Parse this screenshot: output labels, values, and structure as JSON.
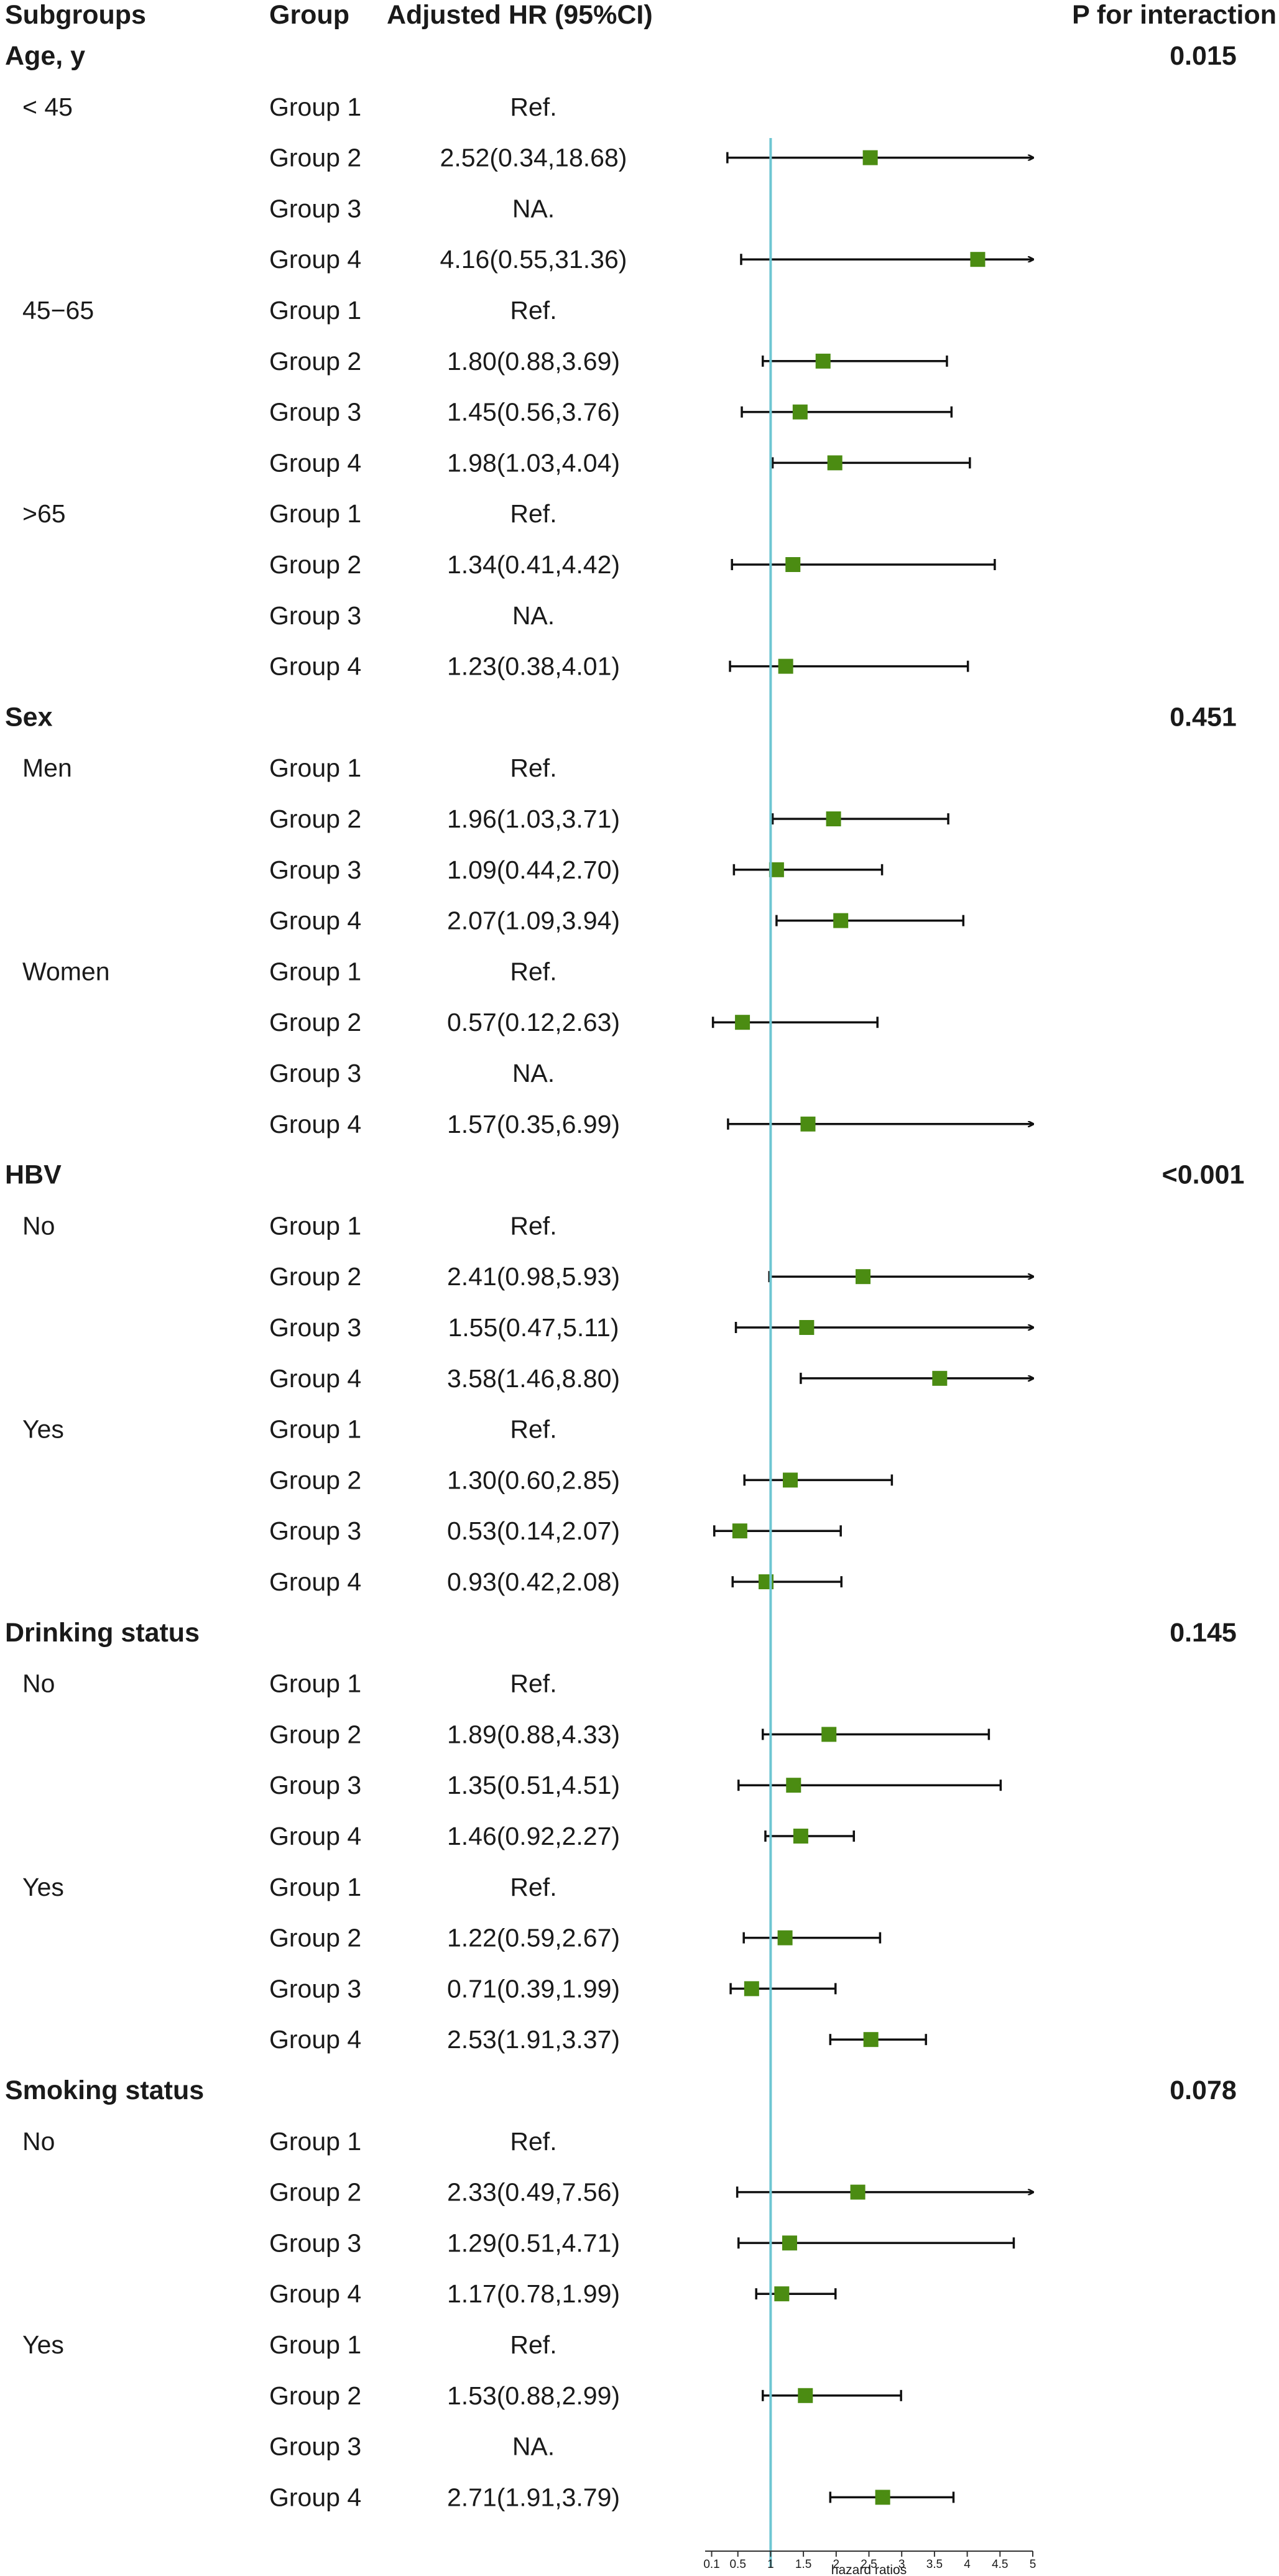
{
  "chart_data": {
    "type": "forest",
    "xlabel": "hazard ratios",
    "xlim": [
      0,
      5
    ],
    "reference_line": 1,
    "reference_color": "#6ec6d2",
    "marker_color": "#4b8c12",
    "tick_values": [
      0.1,
      0.5,
      1,
      1.5,
      2,
      2.5,
      3,
      3.5,
      4,
      4.5,
      5
    ],
    "tick_labels": [
      "0.1",
      "0.5",
      "1",
      "1.5",
      "2",
      "2.5",
      "3",
      "3.5",
      "4",
      "4.5",
      "5"
    ],
    "columns": {
      "subgroups": "Subgroups",
      "group": "Group",
      "hr": "Adjusted HR (95%CI)",
      "p": "P for interaction"
    },
    "rows": [
      {
        "kind": "section",
        "label": "Age, y",
        "p": "0.015"
      },
      {
        "kind": "row",
        "sub": "< 45",
        "group": "Group 1",
        "hr_text": "Ref.",
        "est": null,
        "lo": null,
        "hi": null
      },
      {
        "kind": "row",
        "sub": "",
        "group": "Group 2",
        "hr_text": "2.52(0.34,18.68)",
        "est": 2.52,
        "lo": 0.34,
        "hi": 18.68
      },
      {
        "kind": "row",
        "sub": "",
        "group": "Group 3",
        "hr_text": "NA.",
        "est": null,
        "lo": null,
        "hi": null
      },
      {
        "kind": "row",
        "sub": "",
        "group": "Group 4",
        "hr_text": "4.16(0.55,31.36)",
        "est": 4.16,
        "lo": 0.55,
        "hi": 31.36
      },
      {
        "kind": "row",
        "sub": "45−65",
        "group": "Group 1",
        "hr_text": "Ref.",
        "est": null,
        "lo": null,
        "hi": null
      },
      {
        "kind": "row",
        "sub": "",
        "group": "Group 2",
        "hr_text": "1.80(0.88,3.69)",
        "est": 1.8,
        "lo": 0.88,
        "hi": 3.69
      },
      {
        "kind": "row",
        "sub": "",
        "group": "Group 3",
        "hr_text": "1.45(0.56,3.76)",
        "est": 1.45,
        "lo": 0.56,
        "hi": 3.76
      },
      {
        "kind": "row",
        "sub": "",
        "group": "Group 4",
        "hr_text": "1.98(1.03,4.04)",
        "est": 1.98,
        "lo": 1.03,
        "hi": 4.04
      },
      {
        "kind": "row",
        "sub": ">65",
        "group": "Group 1",
        "hr_text": "Ref.",
        "est": null,
        "lo": null,
        "hi": null
      },
      {
        "kind": "row",
        "sub": "",
        "group": "Group 2",
        "hr_text": "1.34(0.41,4.42)",
        "est": 1.34,
        "lo": 0.41,
        "hi": 4.42
      },
      {
        "kind": "row",
        "sub": "",
        "group": "Group 3",
        "hr_text": "NA.",
        "est": null,
        "lo": null,
        "hi": null
      },
      {
        "kind": "row",
        "sub": "",
        "group": "Group 4",
        "hr_text": "1.23(0.38,4.01)",
        "est": 1.23,
        "lo": 0.38,
        "hi": 4.01
      },
      {
        "kind": "section",
        "label": "Sex",
        "p": "0.451"
      },
      {
        "kind": "row",
        "sub": "Men",
        "group": "Group 1",
        "hr_text": "Ref.",
        "est": null,
        "lo": null,
        "hi": null
      },
      {
        "kind": "row",
        "sub": "",
        "group": "Group 2",
        "hr_text": "1.96(1.03,3.71)",
        "est": 1.96,
        "lo": 1.03,
        "hi": 3.71
      },
      {
        "kind": "row",
        "sub": "",
        "group": "Group 3",
        "hr_text": "1.09(0.44,2.70)",
        "est": 1.09,
        "lo": 0.44,
        "hi": 2.7
      },
      {
        "kind": "row",
        "sub": "",
        "group": "Group 4",
        "hr_text": "2.07(1.09,3.94)",
        "est": 2.07,
        "lo": 1.09,
        "hi": 3.94
      },
      {
        "kind": "row",
        "sub": "Women",
        "group": "Group 1",
        "hr_text": "Ref.",
        "est": null,
        "lo": null,
        "hi": null
      },
      {
        "kind": "row",
        "sub": "",
        "group": "Group 2",
        "hr_text": "0.57(0.12,2.63)",
        "est": 0.57,
        "lo": 0.12,
        "hi": 2.63
      },
      {
        "kind": "row",
        "sub": "",
        "group": "Group 3",
        "hr_text": "NA.",
        "est": null,
        "lo": null,
        "hi": null
      },
      {
        "kind": "row",
        "sub": "",
        "group": "Group 4",
        "hr_text": "1.57(0.35,6.99)",
        "est": 1.57,
        "lo": 0.35,
        "hi": 6.99
      },
      {
        "kind": "section",
        "label": "HBV",
        "p": "<0.001"
      },
      {
        "kind": "row",
        "sub": "No",
        "group": "Group 1",
        "hr_text": "Ref.",
        "est": null,
        "lo": null,
        "hi": null
      },
      {
        "kind": "row",
        "sub": "",
        "group": "Group 2",
        "hr_text": "2.41(0.98,5.93)",
        "est": 2.41,
        "lo": 0.98,
        "hi": 5.93
      },
      {
        "kind": "row",
        "sub": "",
        "group": "Group 3",
        "hr_text": "1.55(0.47,5.11)",
        "est": 1.55,
        "lo": 0.47,
        "hi": 5.11
      },
      {
        "kind": "row",
        "sub": "",
        "group": "Group 4",
        "hr_text": "3.58(1.46,8.80)",
        "est": 3.58,
        "lo": 1.46,
        "hi": 8.8
      },
      {
        "kind": "row",
        "sub": "Yes",
        "group": "Group 1",
        "hr_text": "Ref.",
        "est": null,
        "lo": null,
        "hi": null
      },
      {
        "kind": "row",
        "sub": "",
        "group": "Group 2",
        "hr_text": "1.30(0.60,2.85)",
        "est": 1.3,
        "lo": 0.6,
        "hi": 2.85
      },
      {
        "kind": "row",
        "sub": "",
        "group": "Group 3",
        "hr_text": "0.53(0.14,2.07)",
        "est": 0.53,
        "lo": 0.14,
        "hi": 2.07
      },
      {
        "kind": "row",
        "sub": "",
        "group": "Group 4",
        "hr_text": "0.93(0.42,2.08)",
        "est": 0.93,
        "lo": 0.42,
        "hi": 2.08
      },
      {
        "kind": "section",
        "label": "Drinking status",
        "p": "0.145"
      },
      {
        "kind": "row",
        "sub": "No",
        "group": "Group 1",
        "hr_text": "Ref.",
        "est": null,
        "lo": null,
        "hi": null
      },
      {
        "kind": "row",
        "sub": "",
        "group": "Group 2",
        "hr_text": "1.89(0.88,4.33)",
        "est": 1.89,
        "lo": 0.88,
        "hi": 4.33
      },
      {
        "kind": "row",
        "sub": "",
        "group": "Group 3",
        "hr_text": "1.35(0.51,4.51)",
        "est": 1.35,
        "lo": 0.51,
        "hi": 4.51
      },
      {
        "kind": "row",
        "sub": "",
        "group": "Group 4",
        "hr_text": "1.46(0.92,2.27)",
        "est": 1.46,
        "lo": 0.92,
        "hi": 2.27
      },
      {
        "kind": "row",
        "sub": "Yes",
        "group": "Group 1",
        "hr_text": "Ref.",
        "est": null,
        "lo": null,
        "hi": null
      },
      {
        "kind": "row",
        "sub": "",
        "group": "Group 2",
        "hr_text": "1.22(0.59,2.67)",
        "est": 1.22,
        "lo": 0.59,
        "hi": 2.67
      },
      {
        "kind": "row",
        "sub": "",
        "group": "Group 3",
        "hr_text": "0.71(0.39,1.99)",
        "est": 0.71,
        "lo": 0.39,
        "hi": 1.99
      },
      {
        "kind": "row",
        "sub": "",
        "group": "Group 4",
        "hr_text": "2.53(1.91,3.37)",
        "est": 2.53,
        "lo": 1.91,
        "hi": 3.37
      },
      {
        "kind": "section",
        "label": "Smoking status",
        "p": "0.078"
      },
      {
        "kind": "row",
        "sub": "No",
        "group": "Group 1",
        "hr_text": "Ref.",
        "est": null,
        "lo": null,
        "hi": null
      },
      {
        "kind": "row",
        "sub": "",
        "group": "Group 2",
        "hr_text": "2.33(0.49,7.56)",
        "est": 2.33,
        "lo": 0.49,
        "hi": 7.56
      },
      {
        "kind": "row",
        "sub": "",
        "group": "Group 3",
        "hr_text": "1.29(0.51,4.71)",
        "est": 1.29,
        "lo": 0.51,
        "hi": 4.71
      },
      {
        "kind": "row",
        "sub": "",
        "group": "Group 4",
        "hr_text": "1.17(0.78,1.99)",
        "est": 1.17,
        "lo": 0.78,
        "hi": 1.99
      },
      {
        "kind": "row",
        "sub": "Yes",
        "group": "Group 1",
        "hr_text": "Ref.",
        "est": null,
        "lo": null,
        "hi": null
      },
      {
        "kind": "row",
        "sub": "",
        "group": "Group 2",
        "hr_text": "1.53(0.88,2.99)",
        "est": 1.53,
        "lo": 0.88,
        "hi": 2.99
      },
      {
        "kind": "row",
        "sub": "",
        "group": "Group 3",
        "hr_text": "NA.",
        "est": null,
        "lo": null,
        "hi": null
      },
      {
        "kind": "row",
        "sub": "",
        "group": "Group 4",
        "hr_text": "2.71(1.91,3.79)",
        "est": 2.71,
        "lo": 1.91,
        "hi": 3.79
      }
    ]
  }
}
